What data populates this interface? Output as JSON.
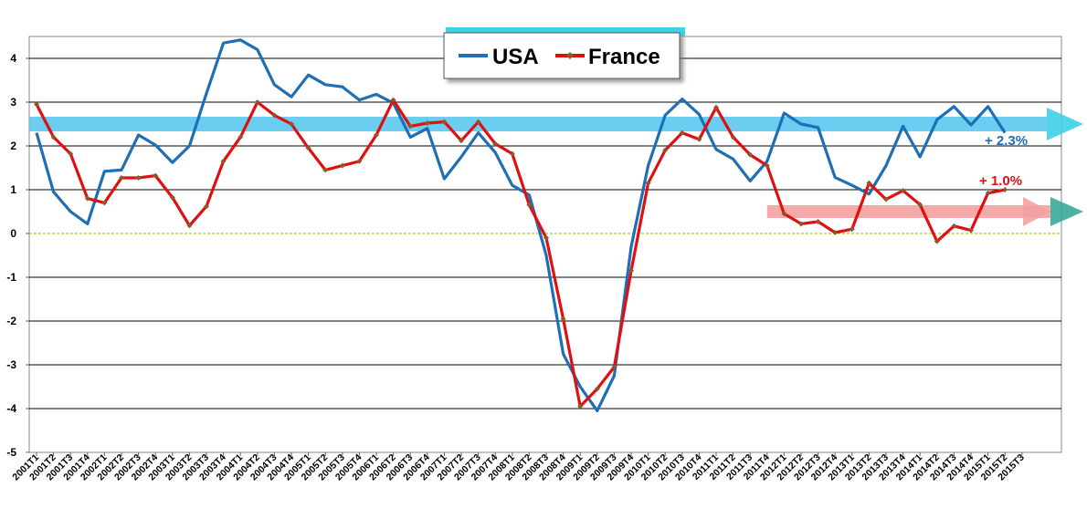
{
  "chart_data": {
    "type": "line",
    "title": "",
    "xlabel": "",
    "ylabel": "",
    "ylim": [
      -5,
      4.5
    ],
    "y_ticks": [
      "4",
      "3",
      "2",
      "1",
      "0",
      "-1",
      "-2",
      "-3",
      "-4",
      "-5"
    ],
    "grid": "horizontal",
    "legend_placement": "top-center",
    "categories": [
      "2001T1",
      "2001T2",
      "2001T3",
      "2001T4",
      "2002T1",
      "2002T2",
      "2002T3",
      "2002T4",
      "2003T1",
      "2003T2",
      "2003T3",
      "2003T4",
      "2004T1",
      "2004T2",
      "2004T3",
      "2004T4",
      "2005T1",
      "2005T2",
      "2005T3",
      "2005T4",
      "2006T1",
      "2006T2",
      "2006T3",
      "2006T4",
      "2007T1",
      "2007T2",
      "2007T3",
      "2007T4",
      "2008T1",
      "2008T2",
      "2008T3",
      "2008T4",
      "2009T1",
      "2009T2",
      "2009T3",
      "2009T4",
      "2010T1",
      "2010T2",
      "2010T3",
      "2010T4",
      "2011T1",
      "2011T2",
      "2011T3",
      "2011T4",
      "2012T1",
      "2012T2",
      "2012T3",
      "2012T4",
      "2013T1",
      "2013T2",
      "2013T3",
      "2013T4",
      "2014T1",
      "2014T2",
      "2014T3",
      "2014T4",
      "2015T1",
      "2015T2",
      "2015T3"
    ],
    "series": [
      {
        "name": "USA",
        "color": "#1f6fb5",
        "values": [
          2.3,
          0.95,
          0.5,
          0.22,
          1.42,
          1.45,
          2.25,
          2.02,
          1.62,
          2.0,
          3.2,
          4.35,
          4.42,
          4.2,
          3.4,
          3.12,
          3.62,
          3.4,
          3.35,
          3.05,
          3.18,
          2.98,
          2.2,
          2.4,
          1.25,
          1.75,
          2.3,
          1.85,
          1.1,
          0.88,
          -0.5,
          -2.75,
          -3.5,
          -4.05,
          -3.25,
          -0.3,
          1.55,
          2.7,
          3.07,
          2.72,
          1.92,
          1.7,
          1.2,
          1.65,
          2.75,
          2.5,
          2.42,
          1.28,
          1.1,
          0.9,
          1.55,
          2.45,
          1.75,
          2.6,
          2.9,
          2.48,
          2.9,
          2.3,
          null
        ]
      },
      {
        "name": "France",
        "color": "#e01010",
        "values": [
          2.95,
          2.2,
          1.82,
          0.8,
          0.7,
          1.27,
          1.27,
          1.32,
          0.82,
          0.18,
          0.62,
          1.65,
          2.2,
          3.0,
          2.7,
          2.5,
          1.95,
          1.45,
          1.55,
          1.65,
          2.25,
          3.05,
          2.45,
          2.52,
          2.55,
          2.12,
          2.55,
          2.05,
          1.82,
          0.65,
          -0.1,
          -1.95,
          -3.95,
          -3.55,
          -3.05,
          -0.85,
          1.15,
          1.9,
          2.3,
          2.15,
          2.88,
          2.2,
          1.8,
          1.55,
          0.45,
          0.22,
          0.27,
          0.02,
          0.1,
          1.15,
          0.78,
          0.98,
          0.66,
          -0.18,
          0.17,
          0.07,
          0.92,
          1.0,
          null
        ]
      }
    ],
    "annotations": [
      {
        "text": "+ 2.3%",
        "color": "#1f6fb5",
        "series": "USA"
      },
      {
        "text": "+ 1.0%",
        "color": "#e01010",
        "series": "France"
      }
    ],
    "trend_arrows": [
      {
        "value": 2.5,
        "color": "#5bc8ee",
        "from_category": "2001T1"
      },
      {
        "value": 0.5,
        "color": "#f4a0a0",
        "from_category": "2011T4"
      }
    ],
    "zero_line_color": "#9acd32"
  }
}
